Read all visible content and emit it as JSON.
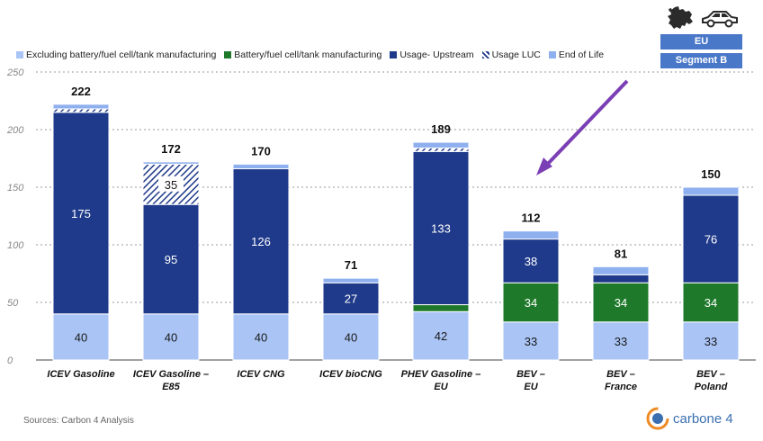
{
  "legend": [
    {
      "label": "Excluding battery/fuel cell/tank manufacturing",
      "color": "#a9c4f5",
      "pattern": "solid"
    },
    {
      "label": "Battery/fuel cell/tank manufacturing",
      "color": "#1e7a2a",
      "pattern": "solid"
    },
    {
      "label": "Usage- Upstream",
      "color": "#1f3a8a",
      "pattern": "solid"
    },
    {
      "label": "Usage LUC",
      "color": "#1f3a8a",
      "pattern": "hatched"
    },
    {
      "label": "End of Life",
      "color": "#8fb0ef",
      "pattern": "solid"
    }
  ],
  "region_label": "EU",
  "segment_label": "Segment B",
  "sources": "Sources: Carbon 4 Analysis",
  "logo_text": "carbone 4",
  "colors": {
    "excluding": "#a9c4f5",
    "battery": "#1e7a2a",
    "upstream": "#1f3a8a",
    "luc": "#1f3a8a",
    "eol": "#8fb0ef",
    "arrow": "#7b3fb5",
    "grid": "#9a9a9a",
    "badge": "#4a78c9"
  },
  "chart_data": {
    "type": "bar",
    "stacked": true,
    "categories": [
      "ICEV Gasoline",
      "ICEV Gasoline – E85",
      "ICEV CNG",
      "ICEV bioCNG",
      "PHEV Gasoline – EU",
      "BEV – EU",
      "BEV – France",
      "BEV – Poland"
    ],
    "series": [
      {
        "name": "Excluding battery/fuel cell/tank manufacturing",
        "values": [
          40,
          40,
          40,
          40,
          42,
          33,
          33,
          33
        ]
      },
      {
        "name": "Battery/fuel cell/tank manufacturing",
        "values": [
          0,
          0,
          0,
          0,
          6,
          34,
          34,
          34
        ]
      },
      {
        "name": "Usage- Upstream",
        "values": [
          175,
          95,
          126,
          27,
          133,
          38,
          7,
          76
        ]
      },
      {
        "name": "Usage LUC",
        "values": [
          3,
          35,
          0,
          0,
          3,
          0,
          0,
          0
        ]
      },
      {
        "name": "End of Life",
        "values": [
          4,
          2,
          4,
          4,
          5,
          7,
          7,
          7
        ]
      }
    ],
    "totals": [
      222,
      172,
      170,
      71,
      189,
      112,
      81,
      150
    ],
    "segment_labels": [
      [
        {
          "series": 0,
          "text": "40"
        },
        {
          "series": 2,
          "text": "175"
        }
      ],
      [
        {
          "series": 0,
          "text": "40"
        },
        {
          "series": 2,
          "text": "95"
        },
        {
          "series": 3,
          "text": "35"
        }
      ],
      [
        {
          "series": 0,
          "text": "40"
        },
        {
          "series": 2,
          "text": "126"
        }
      ],
      [
        {
          "series": 0,
          "text": "40"
        },
        {
          "series": 2,
          "text": "27"
        }
      ],
      [
        {
          "series": 0,
          "text": "42"
        },
        {
          "series": 2,
          "text": "133"
        }
      ],
      [
        {
          "series": 0,
          "text": "33"
        },
        {
          "series": 1,
          "text": "34"
        },
        {
          "series": 2,
          "text": "38"
        }
      ],
      [
        {
          "series": 0,
          "text": "33"
        },
        {
          "series": 1,
          "text": "34"
        }
      ],
      [
        {
          "series": 0,
          "text": "33"
        },
        {
          "series": 1,
          "text": "34"
        },
        {
          "series": 2,
          "text": "76"
        }
      ]
    ],
    "yticks": [
      0,
      50,
      100,
      150,
      200,
      250
    ],
    "ylim": [
      0,
      250
    ],
    "grid": true
  }
}
